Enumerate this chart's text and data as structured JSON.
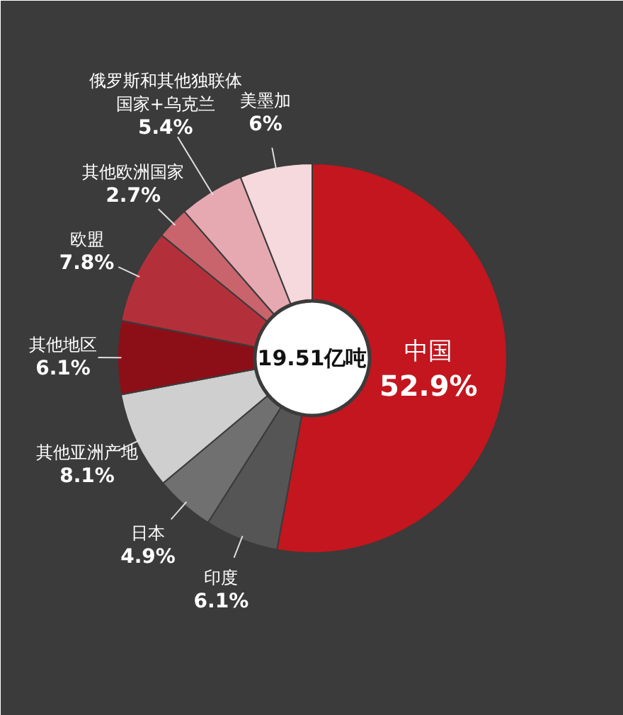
{
  "chart_data": {
    "type": "donut",
    "categories": [
      "中国",
      "印度",
      "日本",
      "其他亚洲产地",
      "其他地区",
      "欧盟",
      "其他欧洲国家",
      "俄罗斯和其他独联体国家+乌克兰",
      "美墨加"
    ],
    "values": [
      52.9,
      6.1,
      4.9,
      8.1,
      6.1,
      7.8,
      2.7,
      5.4,
      6
    ],
    "colors": [
      "#c3161f",
      "#555555",
      "#707070",
      "#cfcfcf",
      "#8c0f18",
      "#b3303a",
      "#c9646d",
      "#e7a9b1",
      "#f6d9dd"
    ],
    "value_labels": [
      "52.9%",
      "6.1%",
      "4.9%",
      "8.1%",
      "6.1%",
      "7.8%",
      "2.7%",
      "5.4%",
      "6%"
    ],
    "annotations": [
      "19.51亿吨"
    ]
  }
}
